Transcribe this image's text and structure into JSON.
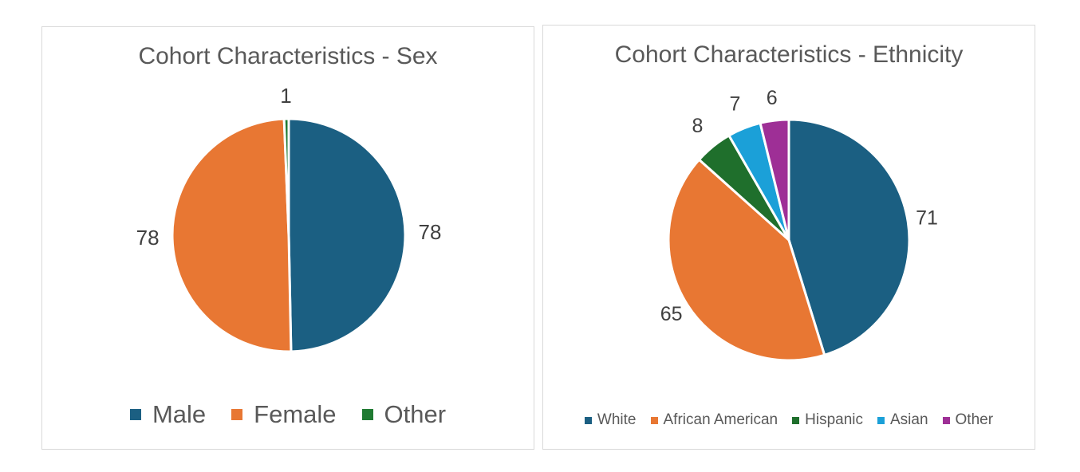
{
  "chart_data": [
    {
      "type": "pie",
      "title": "Cohort Characteristics - Sex",
      "categories": [
        "Male",
        "Female",
        "Other"
      ],
      "values": [
        78,
        78,
        1
      ],
      "data_labels": [
        "78",
        "78",
        "1"
      ],
      "colors": [
        "#1b5f82",
        "#e87733",
        "#1f7a32"
      ],
      "legend_position": "bottom"
    },
    {
      "type": "pie",
      "title": "Cohort Characteristics - Ethnicity",
      "categories": [
        "White",
        "African American",
        "Hispanic",
        "Asian",
        "Other"
      ],
      "values": [
        71,
        65,
        8,
        7,
        6
      ],
      "data_labels": [
        "71",
        "65",
        "8",
        "7",
        "6"
      ],
      "colors": [
        "#1b5f82",
        "#e87733",
        "#1f6f2c",
        "#1ba0d8",
        "#9e2f96"
      ],
      "legend_position": "bottom"
    }
  ]
}
